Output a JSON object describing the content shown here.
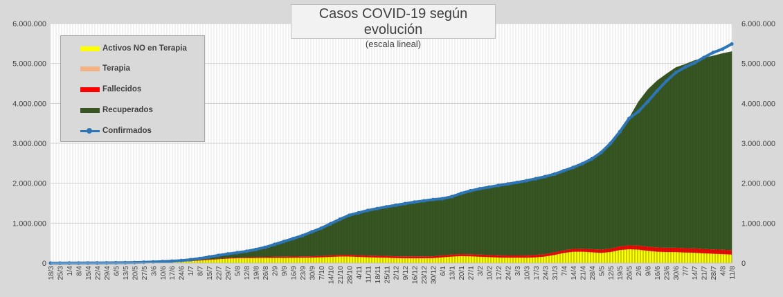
{
  "chart_data": {
    "type": "area",
    "title": "Casos COVID-19 según evolución",
    "subtitle": "(escala lineal)",
    "y_ticks": [
      "0",
      "1.000.000",
      "2.000.000",
      "3.000.000",
      "4.000.000",
      "5.000.000",
      "6.000.000"
    ],
    "ylim": [
      0,
      6000000
    ],
    "y2_ticks": [
      "0",
      "1.000.000",
      "2.000.000",
      "3.000.000",
      "4.000.000",
      "5.000.000",
      "6.000.000"
    ],
    "x": [
      "18/3",
      "25/3",
      "1/4",
      "8/4",
      "15/4",
      "22/4",
      "29/4",
      "6/5",
      "13/5",
      "20/5",
      "27/5",
      "3/6",
      "10/6",
      "17/6",
      "24/6",
      "1/7",
      "8/7",
      "15/7",
      "22/7",
      "29/7",
      "5/8",
      "12/8",
      "19/8",
      "26/8",
      "2/9",
      "9/9",
      "16/9",
      "23/9",
      "30/9",
      "7/10",
      "14/10",
      "21/10",
      "28/10",
      "4/11",
      "11/11",
      "18/11",
      "25/11",
      "2/12",
      "9/12",
      "16/12",
      "23/12",
      "30/12",
      "6/1",
      "13/1",
      "20/1",
      "27/1",
      "3/2",
      "10/2",
      "17/2",
      "24/2",
      "3/3",
      "10/3",
      "17/3",
      "24/3",
      "31/3",
      "7/4",
      "14/4",
      "21/4",
      "28/4",
      "5/5",
      "12/5",
      "19/5",
      "26/5",
      "2/6",
      "9/6",
      "16/6",
      "23/6",
      "30/6",
      "7/7",
      "14/7",
      "21/7",
      "28/7",
      "4/8",
      "11/8"
    ],
    "grid": true,
    "legend_position": "top-left",
    "series": [
      {
        "name": "Activos NO en Terapia",
        "kind": "area",
        "color": "#ffff00",
        "values": [
          100,
          500,
          1000,
          1500,
          2000,
          2500,
          3000,
          4000,
          5000,
          7000,
          10000,
          14000,
          20000,
          27000,
          36000,
          48000,
          62000,
          78000,
          95000,
          110000,
          118000,
          121000,
          123000,
          125000,
          126000,
          127000,
          128000,
          130000,
          132000,
          140000,
          150000,
          160000,
          160000,
          150000,
          140000,
          135000,
          130000,
          120000,
          118000,
          117000,
          118000,
          120000,
          140000,
          160000,
          170000,
          165000,
          155000,
          145000,
          135000,
          130000,
          130000,
          130000,
          140000,
          160000,
          200000,
          250000,
          280000,
          280000,
          265000,
          250000,
          270000,
          320000,
          340000,
          330000,
          300000,
          280000,
          270000,
          270000,
          260000,
          255000,
          240000,
          230000,
          220000,
          210000
        ]
      },
      {
        "name": "Terapia",
        "kind": "area",
        "color": "#f4b183",
        "values": [
          0,
          20,
          50,
          100,
          150,
          200,
          300,
          350,
          400,
          450,
          500,
          600,
          800,
          1000,
          1200,
          1500,
          1800,
          2000,
          2300,
          2600,
          2900,
          3100,
          3300,
          3500,
          3600,
          3700,
          3800,
          3900,
          4000,
          4200,
          4400,
          4500,
          4500,
          4400,
          4200,
          4000,
          3800,
          3500,
          3300,
          3200,
          3100,
          3100,
          3200,
          3400,
          3600,
          3700,
          3700,
          3600,
          3500,
          3400,
          3400,
          3400,
          3500,
          3700,
          4000,
          4500,
          5000,
          5500,
          6000,
          6500,
          7000,
          7500,
          7700,
          7600,
          7200,
          6800,
          6300,
          5800,
          5300,
          4900,
          4600,
          4300,
          4000,
          3800
        ]
      },
      {
        "name": "Fallecidos",
        "kind": "area",
        "color": "#ff0000",
        "values": [
          0,
          0,
          0,
          0,
          0,
          0,
          0,
          1000,
          1500,
          2000,
          3000,
          4000,
          5000,
          6000,
          8000,
          10000,
          12000,
          14000,
          16000,
          18000,
          20000,
          22000,
          24000,
          26000,
          28000,
          30000,
          32000,
          34000,
          36000,
          38000,
          40000,
          42000,
          43000,
          44000,
          45000,
          46000,
          46500,
          47000,
          47500,
          48000,
          48500,
          49000,
          50000,
          51000,
          52000,
          53000,
          54000,
          55000,
          56000,
          57000,
          58000,
          59000,
          60000,
          62000,
          64000,
          67000,
          70000,
          74000,
          78000,
          82000,
          86000,
          90000,
          95000,
          100000,
          104000,
          106000,
          107000,
          107500,
          108000,
          108500,
          109000,
          109200,
          109400,
          109600
        ]
      },
      {
        "name": "Recuperados",
        "kind": "area",
        "color": "#375623",
        "values": [
          0,
          100,
          500,
          1000,
          1500,
          2000,
          2500,
          3000,
          4000,
          5000,
          8000,
          10000,
          12000,
          14000,
          18000,
          25000,
          40000,
          60000,
          80000,
          100000,
          120000,
          150000,
          190000,
          240000,
          310000,
          380000,
          450000,
          520000,
          610000,
          690000,
          790000,
          890000,
          990000,
          1060000,
          1130000,
          1180000,
          1230000,
          1280000,
          1320000,
          1360000,
          1380000,
          1410000,
          1420000,
          1450000,
          1520000,
          1590000,
          1650000,
          1700000,
          1750000,
          1790000,
          1830000,
          1870000,
          1910000,
          1940000,
          1960000,
          1990000,
          2040000,
          2130000,
          2260000,
          2430000,
          2650000,
          2890000,
          3200000,
          3610000,
          3940000,
          4180000,
          4360000,
          4520000,
          4610000,
          4710000,
          4790000,
          4850000,
          4920000,
          4980000
        ]
      },
      {
        "name": "Confirmados",
        "kind": "line",
        "color": "#2e75b6",
        "values": [
          100,
          620,
          1550,
          2600,
          3650,
          4700,
          5800,
          8350,
          10900,
          14450,
          21500,
          28600,
          37800,
          48000,
          63400,
          84500,
          115800,
          154000,
          193300,
          230600,
          261000,
          296200,
          340600,
          394600,
          467600,
          540700,
          613900,
          688000,
          782000,
          872300,
          984500,
          1096600,
          1197600,
          1258500,
          1319300,
          1365100,
          1410300,
          1450600,
          1488800,
          1528300,
          1559600,
          1592100,
          1613200,
          1664400,
          1745700,
          1811800,
          1862700,
          1903700,
          1944600,
          1981400,
          2021500,
          2062500,
          2113600,
          2166100,
          2228700,
          2312800,
          2395400,
          2490600,
          2609800,
          2768600,
          2997600,
          3288200,
          3622200,
          3797600,
          4045400,
          4314700,
          4559800,
          4772100,
          4906400,
          5013300,
          5149200,
          5274700,
          5359600,
          5487800
        ]
      }
    ]
  },
  "colors": {
    "background": "#d9d9d9",
    "plot_bg": "#ffffff",
    "gridline": "#d9d9d9",
    "text": "#404040"
  }
}
